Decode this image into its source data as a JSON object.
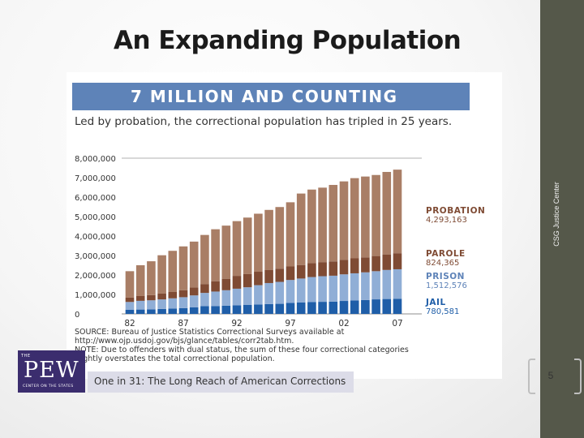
{
  "slide": {
    "title": "An Expanding Population",
    "side_label": "CSG Justice Center",
    "page_number": "5"
  },
  "chart_data": {
    "type": "bar",
    "stacked": true,
    "banner": "7 MILLION AND COUNTING",
    "title": "Led by probation, the correctional population has tripled in 25 years.",
    "x": [
      1982,
      1983,
      1984,
      1985,
      1986,
      1987,
      1988,
      1989,
      1990,
      1991,
      1992,
      1993,
      1994,
      1995,
      1996,
      1997,
      1998,
      1999,
      2000,
      2001,
      2002,
      2003,
      2004,
      2005,
      2006,
      2007
    ],
    "xtick_labels": [
      "82",
      "87",
      "92",
      "97",
      "02",
      "07"
    ],
    "xtick_values": [
      1982,
      1987,
      1992,
      1997,
      2002,
      2007
    ],
    "ylim": [
      0,
      8000000
    ],
    "ytick_labels": [
      "8,000,000",
      "7,000,000",
      "6,000,000",
      "5,000,000",
      "4,000,000",
      "3,000,000",
      "2,000,000",
      "1,000,000",
      "0"
    ],
    "ytick_values": [
      8000000,
      7000000,
      6000000,
      5000000,
      4000000,
      3000000,
      2000000,
      1000000,
      0
    ],
    "series": [
      {
        "name": "JAIL",
        "label_value": "780,581",
        "color": "#1f5ea8",
        "label_color": "#1f5ea8",
        "values": [
          210000,
          224000,
          234000,
          256000,
          274000,
          296000,
          343000,
          395000,
          405000,
          424000,
          444000,
          459000,
          486000,
          507000,
          518000,
          567000,
          592000,
          605000,
          621000,
          631000,
          665000,
          691000,
          713000,
          747000,
          766000,
          780581
        ]
      },
      {
        "name": "PRISON",
        "label_value": "1,512,576",
        "color": "#90aed6",
        "label_color": "#5e83b8",
        "values": [
          403000,
          447000,
          464000,
          488000,
          526000,
          562000,
          607000,
          683000,
          743000,
          792000,
          851000,
          909000,
          990000,
          1078000,
          1127000,
          1176000,
          1225000,
          1288000,
          1316000,
          1331000,
          1367000,
          1394000,
          1422000,
          1447000,
          1492000,
          1512576
        ]
      },
      {
        "name": "PAROLE",
        "label_value": "824,365",
        "color": "#7f4b34",
        "label_color": "#7f4b34",
        "values": [
          224000,
          246000,
          266000,
          300000,
          326000,
          362000,
          408000,
          456000,
          531000,
          590000,
          659000,
          676000,
          690000,
          679000,
          680000,
          694000,
          696000,
          714000,
          723000,
          732000,
          751000,
          769000,
          771000,
          780000,
          798000,
          824365
        ]
      },
      {
        "name": "PROBATION",
        "label_value": "4,293,163",
        "color": "#a97e66",
        "label_color": "#7f4b34",
        "values": [
          1357000,
          1582000,
          1740000,
          1969000,
          2114000,
          2248000,
          2356000,
          2522000,
          2670000,
          2729000,
          2812000,
          2904000,
          2981000,
          3078000,
          3165000,
          3297000,
          3670000,
          3780000,
          3826000,
          3932000,
          4024000,
          4120000,
          4151000,
          4162000,
          4237000,
          4293163
        ]
      }
    ],
    "source_text": "SOURCE: Bureau of Justice Statistics Correctional Surveys available at http://www.ojp.usdoj.gov/bjs/glance/tables/corr2tab.htm. NOTE: Due to offenders with dual status, the sum of these four correctional categories slightly overstates the total correctional population.",
    "source_lines": [
      "SOURCE: Bureau of Justice Statistics Correctional Surveys available at",
      "http://www.ojp.usdoj.gov/bjs/glance/tables/corr2tab.htm.",
      "NOTE: Due to offenders with dual status, the sum of these four correctional categories",
      "slightly overstates the total correctional population."
    ]
  },
  "footer": {
    "logo_the": "THE",
    "logo_pew": "PEW",
    "logo_center": "CENTER ON THE STATES",
    "report_title": "One in 31: The Long Reach of American Corrections"
  }
}
